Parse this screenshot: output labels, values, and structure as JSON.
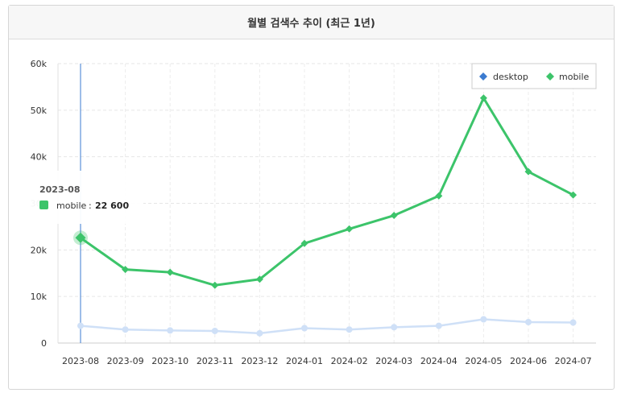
{
  "title": "월별 검색수 추이 (최근 1년)",
  "chart_data": {
    "type": "line",
    "title": "월별 검색수 추이 (최근 1년)",
    "categories": [
      "2023-08",
      "2023-09",
      "2023-10",
      "2023-11",
      "2023-12",
      "2024-01",
      "2024-02",
      "2024-03",
      "2024-04",
      "2024-05",
      "2024-06",
      "2024-07"
    ],
    "series": [
      {
        "name": "desktop",
        "color": "#cfe0f7",
        "legend_color": "#3b7bd0",
        "values": [
          3700,
          2900,
          2700,
          2600,
          2100,
          3200,
          2900,
          3400,
          3700,
          5100,
          4500,
          4400
        ]
      },
      {
        "name": "mobile",
        "color": "#3cc46a",
        "values": [
          22600,
          15800,
          15200,
          12400,
          13700,
          21400,
          24500,
          27400,
          31600,
          52600,
          36800,
          31800
        ]
      }
    ],
    "y_ticks": [
      "0",
      "10k",
      "20k",
      "30k",
      "40k",
      "50k",
      "60k"
    ],
    "ylim": [
      0,
      60000
    ],
    "grid": true,
    "legend": "top-right",
    "tooltip": {
      "date": "2023-08",
      "series": "mobile",
      "separator": ":",
      "value": "22 600"
    }
  }
}
